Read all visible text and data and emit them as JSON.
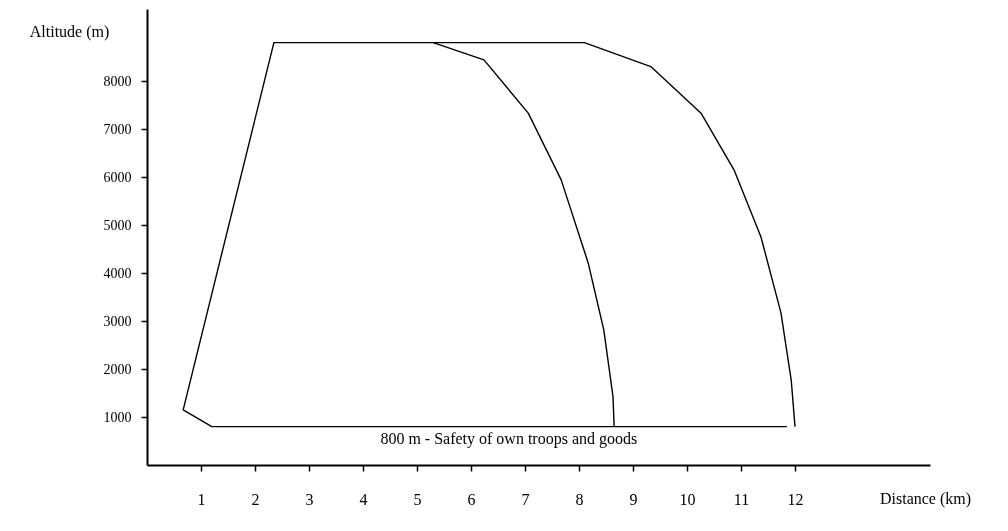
{
  "chart_data": {
    "type": "line",
    "xlabel": "Distance (km)",
    "ylabel": "Altitude (m)",
    "xlim": [
      0,
      14.5
    ],
    "ylim": [
      0,
      9500
    ],
    "xticks": [
      1,
      2,
      3,
      4,
      5,
      6,
      7,
      8,
      9,
      10,
      11,
      12
    ],
    "yticks": [
      1000,
      2000,
      3000,
      4000,
      5000,
      6000,
      7000,
      8000
    ],
    "grid": false,
    "marker": "none",
    "line_style": "solid",
    "series": [
      {
        "color": "#000000",
        "x": [
          11.85,
          1.2,
          0.67,
          2.35,
          8.1,
          9.33,
          10.26,
          10.87,
          11.37,
          11.74,
          11.93,
          12.0
        ],
        "values": [
          800,
          800,
          1150,
          8800,
          8800,
          8300,
          7330,
          6150,
          4750,
          3170,
          1770,
          800
        ]
      },
      {
        "color": "#000000",
        "x": [
          5.3,
          6.24,
          7.06,
          7.67,
          8.17,
          8.46,
          8.63,
          8.65
        ],
        "values": [
          8800,
          8440,
          7330,
          5940,
          4210,
          2810,
          1420,
          800
        ]
      }
    ],
    "annotations": [
      {
        "text": "800 m  - Safety of own troops and goods",
        "x": 6.7,
        "y": 800
      }
    ]
  }
}
